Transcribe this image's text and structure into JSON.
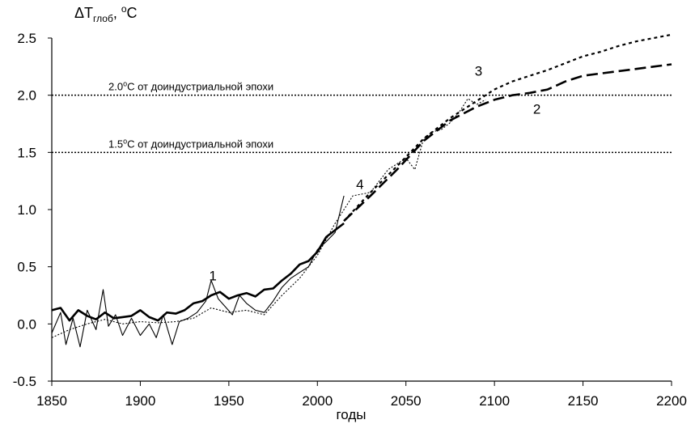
{
  "chart_data": {
    "type": "line",
    "ylabel_base": "ΔT",
    "ylabel_sub": "глоб",
    "ylabel_rest": ", ",
    "ylabel_sup": "o",
    "ylabel_unit": "C",
    "xlabel": "годы",
    "xlim": [
      1850,
      2200
    ],
    "ylim": [
      -0.5,
      2.5
    ],
    "xticks": [
      "1850",
      "1900",
      "1950",
      "2000",
      "2050",
      "2100",
      "2150",
      "2200"
    ],
    "yticks": [
      "-0.5",
      "0.0",
      "0.5",
      "1.0",
      "1.5",
      "2.0",
      "2.5"
    ],
    "reference_lines": [
      {
        "y": 2.0,
        "prefix": "2.0",
        "sup": "o",
        "suffix": "C от доиндустриальной эпохи"
      },
      {
        "y": 1.5,
        "prefix": "1.5",
        "sup": "o",
        "suffix": "C от доиндустриальной эпохи"
      }
    ],
    "curve_labels": [
      {
        "text": "1",
        "x": 1941,
        "y": 0.38
      },
      {
        "text": "2",
        "x": 2124,
        "y": 1.84
      },
      {
        "text": "3",
        "x": 2091,
        "y": 2.17
      },
      {
        "text": "4",
        "x": 2024,
        "y": 1.18
      }
    ],
    "series": [
      {
        "style": "thick-solid",
        "x": [
          1850,
          1855,
          1860,
          1865,
          1870,
          1875,
          1880,
          1885,
          1890,
          1895,
          1900,
          1905,
          1910,
          1915,
          1920,
          1925,
          1930,
          1935,
          1940,
          1945,
          1950,
          1955,
          1960,
          1965,
          1970,
          1975,
          1980,
          1985,
          1990,
          1995,
          2000,
          2005,
          2010,
          2015
        ],
        "y": [
          0.12,
          0.14,
          0.03,
          0.12,
          0.07,
          0.04,
          0.1,
          0.05,
          0.06,
          0.07,
          0.12,
          0.06,
          0.03,
          0.1,
          0.09,
          0.12,
          0.18,
          0.2,
          0.25,
          0.28,
          0.22,
          0.25,
          0.27,
          0.24,
          0.3,
          0.31,
          0.38,
          0.44,
          0.52,
          0.55,
          0.63,
          0.76,
          0.82,
          0.88
        ]
      },
      {
        "style": "thin-solid",
        "x": [
          1850,
          1855,
          1858,
          1862,
          1866,
          1870,
          1875,
          1879,
          1882,
          1886,
          1890,
          1895,
          1900,
          1905,
          1909,
          1913,
          1918,
          1922,
          1927,
          1932,
          1937,
          1940,
          1944,
          1948,
          1952,
          1956,
          1960,
          1965,
          1970,
          1975,
          1980,
          1985,
          1990,
          1995,
          2000,
          2005,
          2010,
          2015
        ],
        "y": [
          -0.08,
          0.1,
          -0.18,
          0.05,
          -0.2,
          0.12,
          -0.05,
          0.3,
          -0.02,
          0.08,
          -0.1,
          0.05,
          -0.1,
          0.0,
          -0.12,
          0.08,
          -0.18,
          0.02,
          0.05,
          0.1,
          0.2,
          0.38,
          0.22,
          0.15,
          0.08,
          0.25,
          0.18,
          0.12,
          0.1,
          0.2,
          0.32,
          0.4,
          0.45,
          0.5,
          0.65,
          0.72,
          0.8,
          1.12
        ]
      },
      {
        "style": "thin-dotted",
        "x": [
          1850,
          1860,
          1870,
          1880,
          1890,
          1900,
          1910,
          1920,
          1930,
          1940,
          1950,
          1960,
          1970,
          1980,
          1990,
          2000,
          2010,
          2020,
          2030,
          2040,
          2050,
          2055,
          2060,
          2065,
          2070,
          2075,
          2080,
          2085,
          2090,
          2095
        ],
        "y": [
          -0.12,
          -0.05,
          0.0,
          0.04,
          0.0,
          0.02,
          0.01,
          0.02,
          0.05,
          0.14,
          0.1,
          0.12,
          0.08,
          0.25,
          0.4,
          0.6,
          0.88,
          1.12,
          1.15,
          1.35,
          1.45,
          1.35,
          1.62,
          1.68,
          1.7,
          1.76,
          1.85,
          1.97,
          1.92,
          1.96
        ]
      },
      {
        "style": "long-dash",
        "x": [
          2015,
          2030,
          2045,
          2060,
          2075,
          2090,
          2100,
          2110,
          2120,
          2130,
          2140,
          2150,
          2160,
          2170,
          2180,
          2190,
          2200
        ],
        "y": [
          0.9,
          1.12,
          1.35,
          1.6,
          1.78,
          1.9,
          1.96,
          2.0,
          2.02,
          2.05,
          2.12,
          2.17,
          2.19,
          2.21,
          2.23,
          2.25,
          2.27
        ]
      },
      {
        "style": "short-dash",
        "x": [
          2015,
          2030,
          2045,
          2060,
          2075,
          2090,
          2100,
          2110,
          2120,
          2130,
          2140,
          2150,
          2160,
          2170,
          2180,
          2190,
          2200
        ],
        "y": [
          0.9,
          1.15,
          1.38,
          1.62,
          1.8,
          1.95,
          2.05,
          2.12,
          2.17,
          2.22,
          2.28,
          2.34,
          2.38,
          2.43,
          2.47,
          2.5,
          2.53
        ]
      }
    ]
  }
}
